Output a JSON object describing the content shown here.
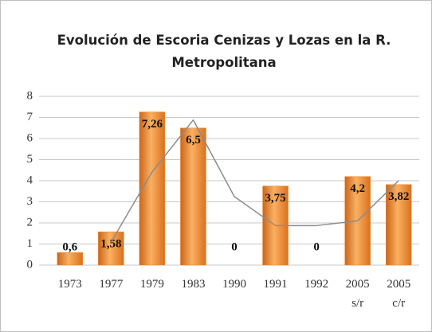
{
  "chart_data": {
    "type": "bar",
    "title": "Evolución de Escoria Cenizas y Lozas en la R. Metropolitana",
    "categories": [
      "1973",
      "1977",
      "1979",
      "1983",
      "1990",
      "1991",
      "1992",
      "2005 s/r",
      "2005 c/r"
    ],
    "series": [
      {
        "type": "bar",
        "color": "#f08a2c",
        "values": [
          0.6,
          1.58,
          7.26,
          6.5,
          0,
          3.75,
          0,
          4.2,
          3.82
        ],
        "value_labels": [
          "0,6",
          "1,58",
          "7,26",
          "6,5",
          "0",
          "3,75",
          "0",
          "4,2",
          "3,82"
        ]
      },
      {
        "type": "line",
        "color": "#8c8c8c",
        "values": [
          null,
          1.09,
          4.42,
          6.88,
          3.25,
          1.875,
          1.875,
          2.1,
          4.01
        ]
      }
    ],
    "ylim": [
      0,
      8
    ],
    "yticks": [
      0,
      1,
      2,
      3,
      4,
      5,
      6,
      7,
      8
    ],
    "grid": true
  }
}
